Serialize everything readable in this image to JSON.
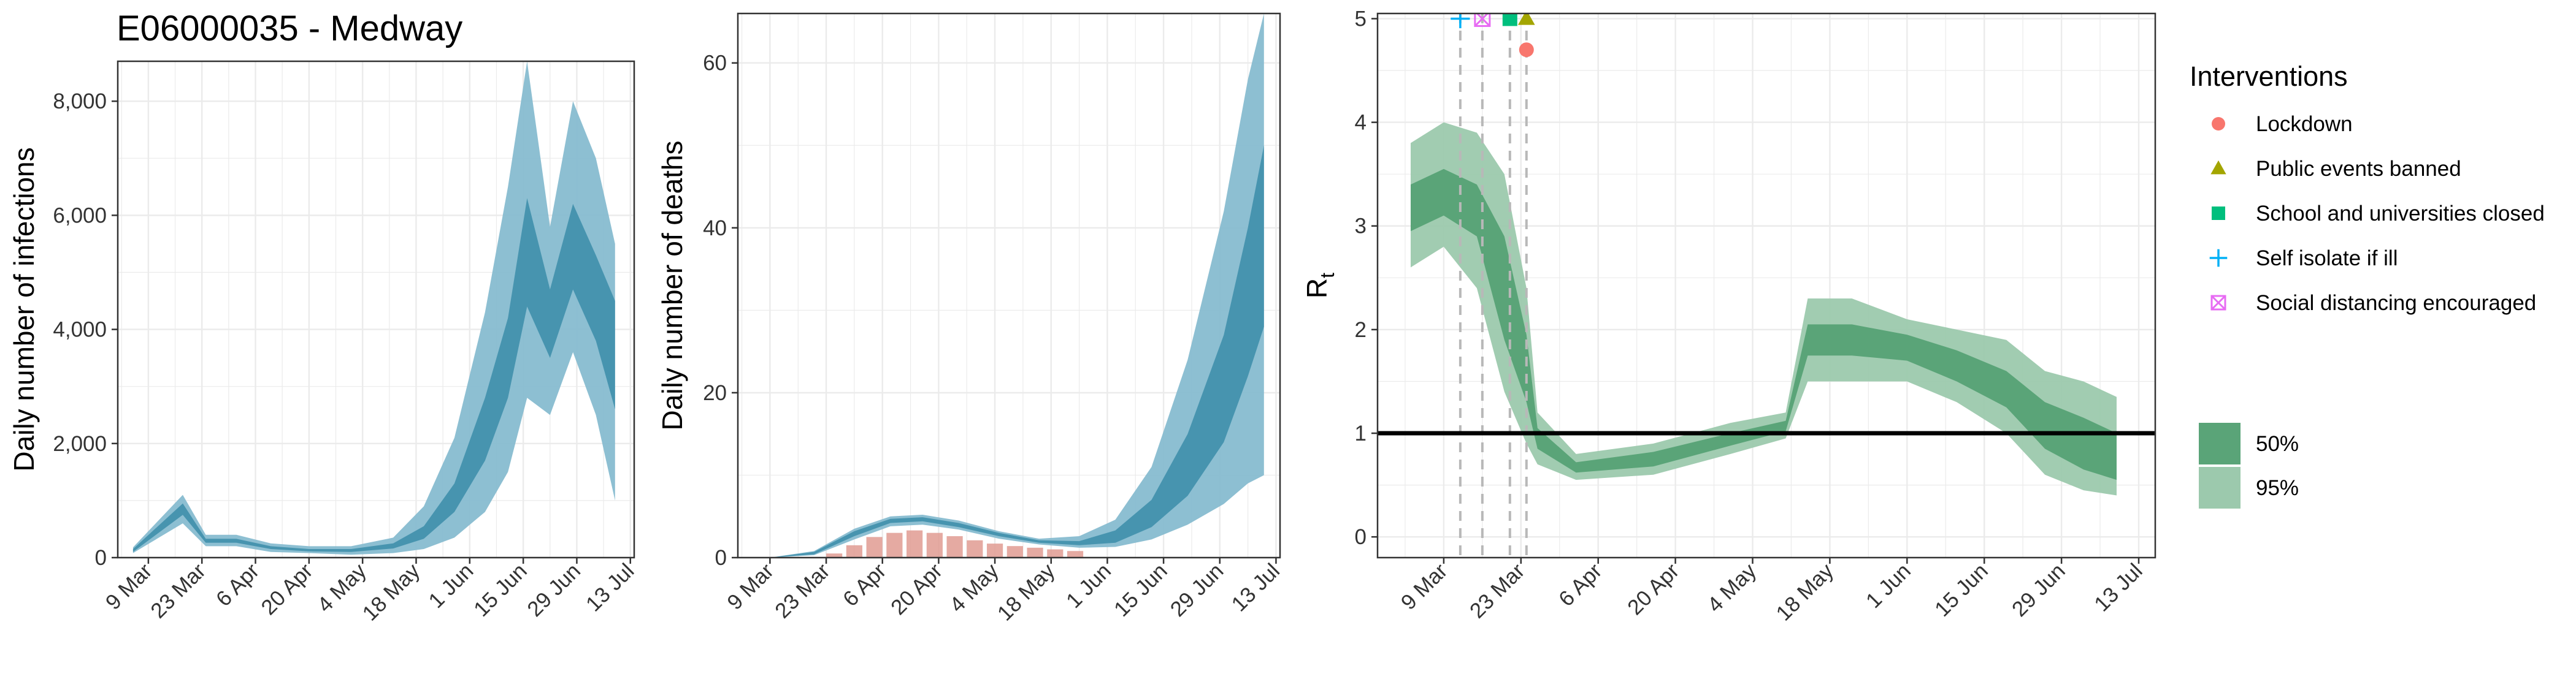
{
  "page": {
    "title": "E06000035 - Medway"
  },
  "colors": {
    "infections_95": "#87bcd0",
    "infections_50": "#3f8fab",
    "deaths_95": "#87bcd0",
    "deaths_50": "#3f8fab",
    "observed_deaths": "#e09b92",
    "rt_50": "#5aa478",
    "rt_95": "#9cc9ad",
    "grid": "#ebebeb",
    "lockdown": "#f8766d",
    "public_events": "#a3a500",
    "schools": "#00bf7d",
    "self_isolate": "#00b0f6",
    "social_distancing": "#e76bf3"
  },
  "legend": {
    "interventions_title": "Interventions",
    "interventions": [
      {
        "label": "Lockdown",
        "shape": "circle",
        "color": "#f8766d"
      },
      {
        "label": "Public events banned",
        "shape": "triangle",
        "color": "#a3a500"
      },
      {
        "label": "School and universities closed",
        "shape": "square",
        "color": "#00bf7d"
      },
      {
        "label": "Self isolate if ill",
        "shape": "plus",
        "color": "#00b0f6"
      },
      {
        "label": "Social distancing encouraged",
        "shape": "boxcross",
        "color": "#e76bf3"
      }
    ],
    "intervals": [
      {
        "label": "50%",
        "color": "#5aa478"
      },
      {
        "label": "95%",
        "color": "#9cc9ad"
      }
    ]
  },
  "chart_data": [
    {
      "type": "area",
      "title": "E06000035 - Medway",
      "xlabel": "",
      "ylabel": "Daily number of infections",
      "x_start": "2020-03-01",
      "xlim": [
        "2020-03-01",
        "2020-07-14"
      ],
      "ylim": [
        0,
        8700
      ],
      "x_ticks": [
        "9 Mar",
        "23 Mar",
        "6 Apr",
        "20 Apr",
        "4 May",
        "18 May",
        "1 Jun",
        "15 Jun",
        "29 Jun",
        "13 Jul"
      ],
      "y_ticks": [
        0,
        2000,
        4000,
        6000,
        8000
      ],
      "y_tick_labels": [
        "0",
        "2,000",
        "4,000",
        "6,000",
        "8,000"
      ],
      "grid": true,
      "series": [
        {
          "name": "95%",
          "x": [
            "2020-03-05",
            "2020-03-18",
            "2020-03-24",
            "2020-04-01",
            "2020-04-10",
            "2020-04-20",
            "2020-05-01",
            "2020-05-12",
            "2020-05-20",
            "2020-05-28",
            "2020-06-05",
            "2020-06-11",
            "2020-06-16",
            "2020-06-22",
            "2020-06-28",
            "2020-07-04",
            "2020-07-09"
          ],
          "lower": [
            80,
            600,
            200,
            200,
            100,
            80,
            50,
            80,
            150,
            350,
            800,
            1500,
            2800,
            2500,
            3600,
            2500,
            1000
          ],
          "upper": [
            180,
            1100,
            400,
            400,
            250,
            200,
            200,
            350,
            900,
            2100,
            4300,
            6500,
            8700,
            5800,
            8000,
            7000,
            5500
          ]
        },
        {
          "name": "50%",
          "x": [
            "2020-03-05",
            "2020-03-18",
            "2020-03-24",
            "2020-04-01",
            "2020-04-10",
            "2020-04-20",
            "2020-05-01",
            "2020-05-12",
            "2020-05-20",
            "2020-05-28",
            "2020-06-05",
            "2020-06-11",
            "2020-06-16",
            "2020-06-22",
            "2020-06-28",
            "2020-07-04",
            "2020-07-09"
          ],
          "lower": [
            100,
            750,
            260,
            260,
            150,
            110,
            100,
            160,
            330,
            800,
            1700,
            2800,
            4400,
            3500,
            4700,
            3800,
            2600
          ],
          "upper": [
            150,
            950,
            330,
            330,
            200,
            150,
            150,
            250,
            550,
            1300,
            2800,
            4200,
            6300,
            4700,
            6200,
            5300,
            4500
          ]
        }
      ]
    },
    {
      "type": "area",
      "title": "",
      "xlabel": "",
      "ylabel": "Daily number of deaths",
      "x_start": "2020-03-01",
      "xlim": [
        "2020-03-01",
        "2020-07-14"
      ],
      "ylim": [
        0,
        66
      ],
      "x_ticks": [
        "9 Mar",
        "23 Mar",
        "6 Apr",
        "20 Apr",
        "4 May",
        "18 May",
        "1 Jun",
        "15 Jun",
        "29 Jun",
        "13 Jul"
      ],
      "y_ticks": [
        0,
        20,
        40,
        60
      ],
      "y_tick_labels": [
        "0",
        "20",
        "40",
        "60"
      ],
      "grid": true,
      "series": [
        {
          "name": "95%",
          "x": [
            "2020-03-09",
            "2020-03-20",
            "2020-03-30",
            "2020-04-08",
            "2020-04-16",
            "2020-04-25",
            "2020-05-05",
            "2020-05-15",
            "2020-05-25",
            "2020-06-03",
            "2020-06-12",
            "2020-06-21",
            "2020-06-30",
            "2020-07-06",
            "2020-07-10"
          ],
          "lower": [
            0,
            0.3,
            2.2,
            3.8,
            4.0,
            3.4,
            2.3,
            1.6,
            1.2,
            1.3,
            2.2,
            4.0,
            6.5,
            9.0,
            10.0
          ],
          "upper": [
            0,
            0.8,
            3.5,
            5.0,
            5.2,
            4.5,
            3.2,
            2.3,
            2.6,
            4.6,
            11.0,
            24.0,
            42.0,
            58.0,
            66.0
          ]
        },
        {
          "name": "50%",
          "x": [
            "2020-03-09",
            "2020-03-20",
            "2020-03-30",
            "2020-04-08",
            "2020-04-16",
            "2020-04-25",
            "2020-05-05",
            "2020-05-15",
            "2020-05-25",
            "2020-06-03",
            "2020-06-12",
            "2020-06-21",
            "2020-06-30",
            "2020-07-06",
            "2020-07-10"
          ],
          "lower": [
            0,
            0.4,
            2.6,
            4.2,
            4.4,
            3.7,
            2.6,
            1.8,
            1.5,
            1.8,
            3.7,
            7.5,
            14.0,
            22.0,
            28.0
          ],
          "upper": [
            0,
            0.7,
            3.2,
            4.7,
            4.9,
            4.2,
            3.0,
            2.1,
            2.0,
            3.3,
            7.0,
            15.0,
            27.0,
            40.0,
            50.0
          ]
        },
        {
          "name": "observed",
          "type": "bar",
          "x": [
            "2020-03-25",
            "2020-03-30",
            "2020-04-04",
            "2020-04-09",
            "2020-04-14",
            "2020-04-19",
            "2020-04-24",
            "2020-04-29",
            "2020-05-04",
            "2020-05-09",
            "2020-05-14",
            "2020-05-19",
            "2020-05-24"
          ],
          "values": [
            0.5,
            1.5,
            2.5,
            3.0,
            3.3,
            3.0,
            2.6,
            2.1,
            1.7,
            1.4,
            1.2,
            1.0,
            0.8
          ]
        }
      ]
    },
    {
      "type": "area",
      "title": "",
      "xlabel": "",
      "ylabel": "Rt",
      "x_start": "2020-03-01",
      "xlim": [
        "2020-02-26",
        "2020-07-16"
      ],
      "ylim": [
        -0.2,
        5.05
      ],
      "x_ticks": [
        "9 Mar",
        "23 Mar",
        "6 Apr",
        "20 Apr",
        "4 May",
        "18 May",
        "1 Jun",
        "15 Jun",
        "29 Jun",
        "13 Jul"
      ],
      "y_ticks": [
        0,
        1,
        2,
        3,
        4,
        5
      ],
      "y_tick_labels": [
        "0",
        "1",
        "2",
        "3",
        "4",
        "5"
      ],
      "grid": true,
      "reference_line": 1,
      "series": [
        {
          "name": "95%",
          "x": [
            "2020-03-03",
            "2020-03-09",
            "2020-03-15",
            "2020-03-20",
            "2020-03-24",
            "2020-03-26",
            "2020-04-02",
            "2020-04-16",
            "2020-04-30",
            "2020-05-10",
            "2020-05-14",
            "2020-05-22",
            "2020-06-01",
            "2020-06-10",
            "2020-06-19",
            "2020-06-26",
            "2020-07-03",
            "2020-07-09"
          ],
          "lower": [
            2.6,
            2.8,
            2.4,
            1.4,
            0.9,
            0.7,
            0.55,
            0.6,
            0.8,
            0.95,
            1.5,
            1.5,
            1.5,
            1.3,
            1.0,
            0.6,
            0.45,
            0.4
          ],
          "upper": [
            3.8,
            4.0,
            3.9,
            3.5,
            2.4,
            1.2,
            0.8,
            0.9,
            1.1,
            1.2,
            2.3,
            2.3,
            2.1,
            2.0,
            1.9,
            1.6,
            1.5,
            1.35
          ]
        },
        {
          "name": "50%",
          "x": [
            "2020-03-03",
            "2020-03-09",
            "2020-03-15",
            "2020-03-20",
            "2020-03-24",
            "2020-03-26",
            "2020-04-02",
            "2020-04-16",
            "2020-04-30",
            "2020-05-10",
            "2020-05-14",
            "2020-05-22",
            "2020-06-01",
            "2020-06-10",
            "2020-06-19",
            "2020-06-26",
            "2020-07-03",
            "2020-07-09"
          ],
          "lower": [
            2.95,
            3.1,
            2.9,
            1.9,
            1.3,
            0.85,
            0.62,
            0.68,
            0.88,
            1.02,
            1.75,
            1.75,
            1.7,
            1.5,
            1.25,
            0.85,
            0.65,
            0.55
          ],
          "upper": [
            3.4,
            3.55,
            3.4,
            2.9,
            1.95,
            1.05,
            0.72,
            0.82,
            1.0,
            1.12,
            2.05,
            2.05,
            1.95,
            1.8,
            1.6,
            1.3,
            1.15,
            1.0
          ]
        }
      ],
      "interventions": [
        {
          "name": "Self isolate if ill",
          "date": "2020-03-12",
          "shape": "plus",
          "color": "#00b0f6",
          "y": 5.0
        },
        {
          "name": "Social distancing encouraged",
          "date": "2020-03-16",
          "shape": "boxcross",
          "color": "#e76bf3",
          "y": 5.0
        },
        {
          "name": "School and universities closed",
          "date": "2020-03-21",
          "shape": "square",
          "color": "#00bf7d",
          "y": 5.0
        },
        {
          "name": "Public events banned",
          "date": "2020-03-24",
          "shape": "triangle",
          "color": "#a3a500",
          "y": 5.0
        },
        {
          "name": "Lockdown",
          "date": "2020-03-24",
          "shape": "circle",
          "color": "#f8766d",
          "y": 4.7
        }
      ]
    }
  ]
}
